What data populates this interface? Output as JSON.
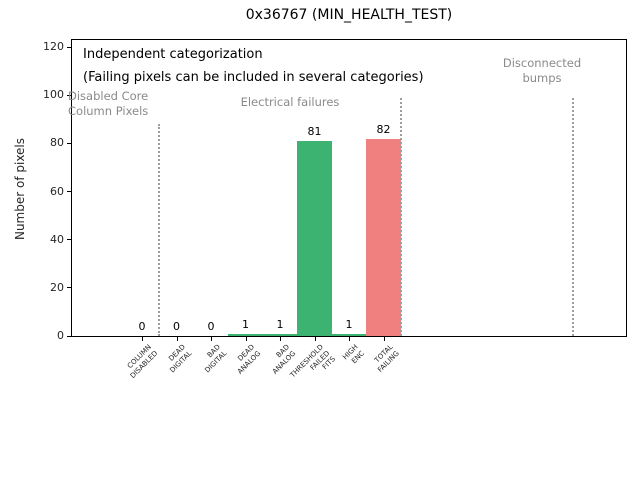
{
  "chart_data": {
    "type": "bar",
    "title": "0x36767 (MIN_HEALTH_TEST)",
    "ylabel": "Number of pixels",
    "xlabel": "",
    "ylim": [
      0,
      123
    ],
    "yticks": [
      0,
      20,
      40,
      60,
      80,
      100,
      120
    ],
    "grid": false,
    "legend": null,
    "categories": [
      "COLUMN\nDISABLED",
      "DEAD\nDIGITAL",
      "BAD\nDIGITAL",
      "DEAD\nANALOG",
      "BAD\nANALOG",
      "THRESHOLD\nFAILED\nFITS",
      "HIGH\nENC",
      "TOTAL\nFAILING"
    ],
    "values": [
      0,
      0,
      0,
      1,
      1,
      81,
      1,
      82
    ],
    "value_labels": [
      "0",
      "0",
      "0",
      "1",
      "1",
      "81",
      "1",
      "82"
    ],
    "bar_colors": [
      "#3CB371",
      "#3CB371",
      "#3CB371",
      "#3CB371",
      "#3CB371",
      "#3CB371",
      "#3CB371",
      "#F08080"
    ],
    "annotations": [
      {
        "id": "independent",
        "text": "Independent categorization",
        "color": "#000000"
      },
      {
        "id": "failing-note",
        "text": "(Failing pixels can be included in several categories)",
        "color": "#000000"
      },
      {
        "id": "disabled-core",
        "text": "Disabled Core\nColumn Pixels",
        "color": "#8a8a8a"
      },
      {
        "id": "electrical",
        "text": "Electrical failures",
        "color": "#8a8a8a"
      },
      {
        "id": "disconnected",
        "text": "Disconnected\nbumps",
        "color": "#8a8a8a"
      }
    ],
    "separators_x": [
      0.5,
      7.5,
      12.5
    ],
    "separator_color": "#9e9e9e",
    "colors": {
      "pass_bar": "#3CB371",
      "total_bar": "#F08080",
      "annotation_gray": "#8a8a8a"
    }
  }
}
